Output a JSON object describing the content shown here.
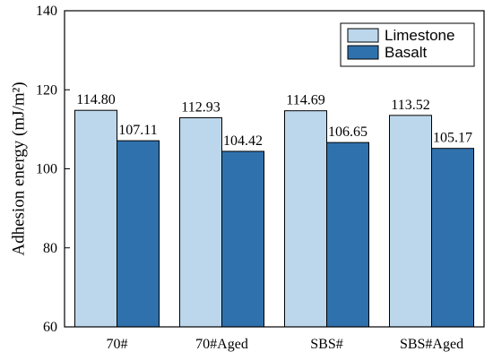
{
  "chart_data": {
    "type": "bar",
    "title": "",
    "xlabel": "",
    "ylabel": "Adhesion energy (mJ/m²)",
    "ylim": [
      60,
      140
    ],
    "yticks": [
      60,
      80,
      100,
      120,
      140
    ],
    "categories": [
      "70#",
      "70#Aged",
      "SBS#",
      "SBS#Aged"
    ],
    "series": [
      {
        "name": "Limestone",
        "color": "#bcd7ec",
        "values": [
          114.8,
          112.93,
          114.69,
          113.52
        ],
        "labels": [
          "114.80",
          "112.93",
          "114.69",
          "113.52"
        ]
      },
      {
        "name": "Basalt",
        "color": "#2f71ad",
        "values": [
          107.11,
          104.42,
          106.65,
          105.17
        ],
        "labels": [
          "107.11",
          "104.42",
          "106.65",
          "105.17"
        ]
      }
    ],
    "grid": false,
    "legend_position": "top-right"
  }
}
